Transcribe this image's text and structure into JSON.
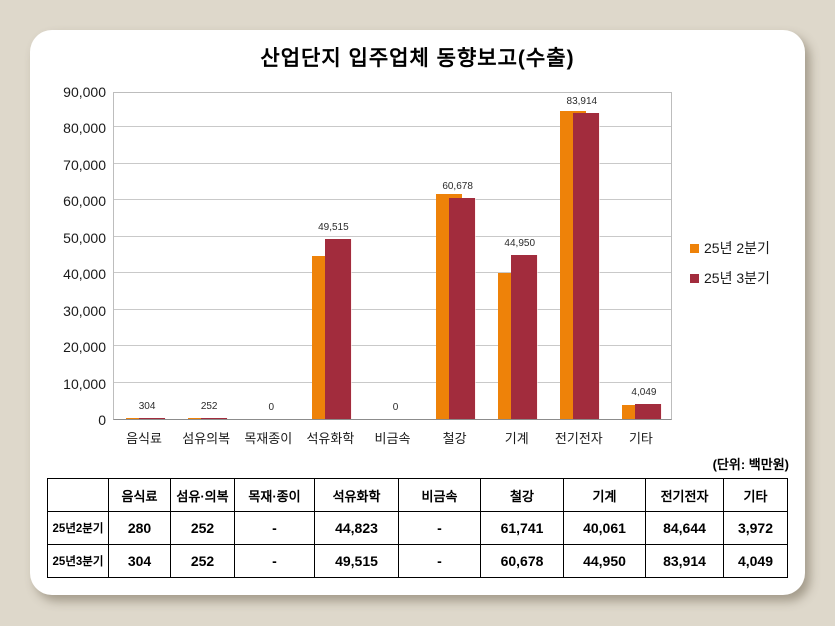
{
  "title": "산업단지 입주업체 동향보고(수출)",
  "unit_label": "(단위: 백만원)",
  "colors": {
    "series_q2": "#ee8209",
    "series_q3": "#a22c3d",
    "page_background": "#ded8cb",
    "card_background": "#ffffff",
    "gridline": "#c9c9c9"
  },
  "chart_data": {
    "type": "bar",
    "title": "산업단지 입주업체 동향보고(수출)",
    "categories": [
      "음식료",
      "섬유의복",
      "목재종이",
      "석유화학",
      "비금속",
      "철강",
      "기계",
      "전기전자",
      "기타"
    ],
    "series": [
      {
        "name": "25년 2분기",
        "color": "#ee8209",
        "values": [
          280,
          252,
          0,
          44823,
          0,
          61741,
          40061,
          84644,
          3972
        ]
      },
      {
        "name": "25년 3분기",
        "color": "#a22c3d",
        "values": [
          304,
          252,
          0,
          49515,
          0,
          60678,
          44950,
          83914,
          4049
        ]
      }
    ],
    "bar_value_labels": [
      "304",
      "252",
      "0",
      "49,515",
      "0",
      "60,678",
      "44,950",
      "83,914",
      "4,049"
    ],
    "xlabel": "",
    "ylabel": "",
    "ylim": [
      0,
      90000
    ],
    "ytick_step": 10000,
    "ytick_labels": [
      "0",
      "10,000",
      "20,000",
      "30,000",
      "40,000",
      "50,000",
      "60,000",
      "70,000",
      "80,000",
      "90,000"
    ],
    "grid": true,
    "legend_position": "right"
  },
  "table": {
    "columns": [
      "",
      "음식료",
      "섬유·의복",
      "목재·종이",
      "석유화학",
      "비금속",
      "철강",
      "기계",
      "전기전자",
      "기타"
    ],
    "rows": [
      {
        "label": "25년2분기",
        "values": [
          "280",
          "252",
          "-",
          "44,823",
          "-",
          "61,741",
          "40,061",
          "84,644",
          "3,972"
        ]
      },
      {
        "label": "25년3분기",
        "values": [
          "304",
          "252",
          "-",
          "49,515",
          "-",
          "60,678",
          "44,950",
          "83,914",
          "4,049"
        ]
      }
    ]
  },
  "legend": {
    "items": [
      {
        "label": "25년 2분기"
      },
      {
        "label": "25년 3분기"
      }
    ]
  }
}
